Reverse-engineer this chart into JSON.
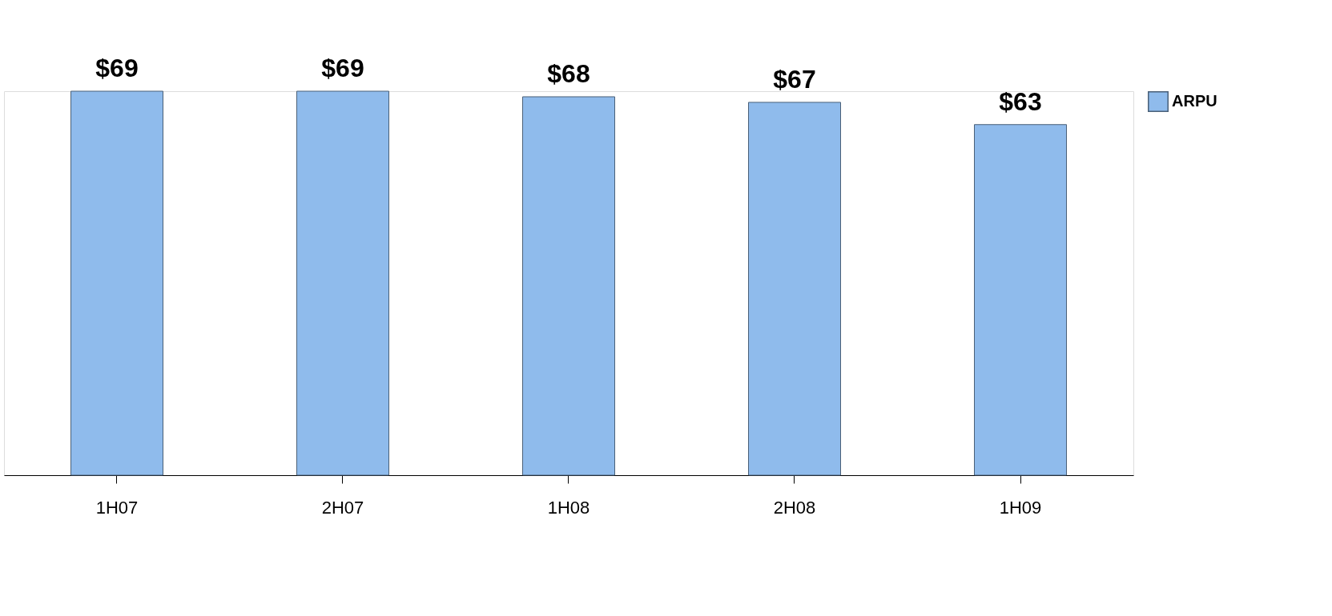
{
  "chart_data": {
    "type": "bar",
    "categories": [
      "1H07",
      "2H07",
      "1H08",
      "2H08",
      "1H09"
    ],
    "series": [
      {
        "name": "ARPU",
        "color": "#8fbbec",
        "values": [
          69,
          69,
          68,
          67,
          63
        ],
        "value_labels": [
          "$69",
          "$69",
          "$68",
          "$67",
          "$63"
        ]
      }
    ],
    "legend": "top right",
    "grid": false
  }
}
